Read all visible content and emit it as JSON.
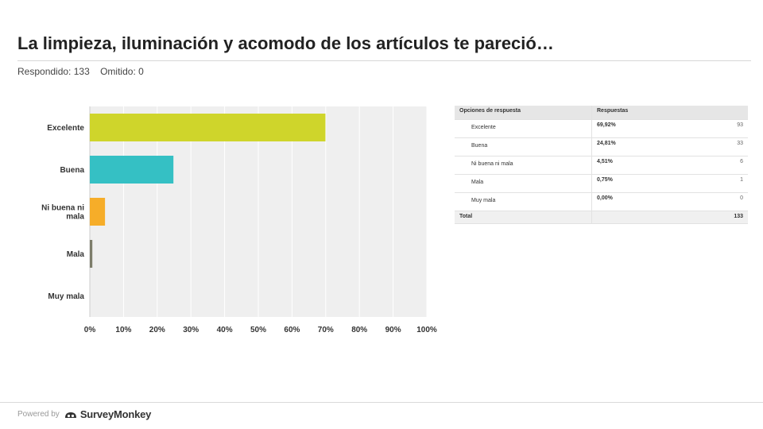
{
  "question": {
    "title": "La limpieza, iluminación y acomodo de los artículos te pareció…",
    "answered_label": "Respondido: 133",
    "skipped_label": "Omitido: 0"
  },
  "chart_data": {
    "type": "bar",
    "orientation": "horizontal",
    "categories": [
      "Excelente",
      "Buena",
      "Ni buena ni mala",
      "Mala",
      "Muy mala"
    ],
    "values": [
      69.92,
      24.81,
      4.51,
      0.75,
      0.0
    ],
    "xlim": [
      0,
      100
    ],
    "xticks": [
      "0%",
      "10%",
      "20%",
      "30%",
      "40%",
      "50%",
      "60%",
      "70%",
      "80%",
      "90%",
      "100%"
    ],
    "colors": [
      "#cfd52b",
      "#35c0c4",
      "#f6ad29",
      "#7d7d6a",
      "#7d7d6a"
    ],
    "grid": true
  },
  "table": {
    "headers": [
      "Opciones de respuesta",
      "Respuestas"
    ],
    "rows": [
      {
        "option": "Excelente",
        "percent": "69,92%",
        "count": "93"
      },
      {
        "option": "Buena",
        "percent": "24,81%",
        "count": "33"
      },
      {
        "option": "Ni buena ni mala",
        "percent": "4,51%",
        "count": "6"
      },
      {
        "option": "Mala",
        "percent": "0,75%",
        "count": "1"
      },
      {
        "option": "Muy mala",
        "percent": "0,00%",
        "count": "0"
      }
    ],
    "total_label": "Total",
    "total_count": "133"
  },
  "footer": {
    "powered_by": "Powered by",
    "brand": "SurveyMonkey"
  }
}
